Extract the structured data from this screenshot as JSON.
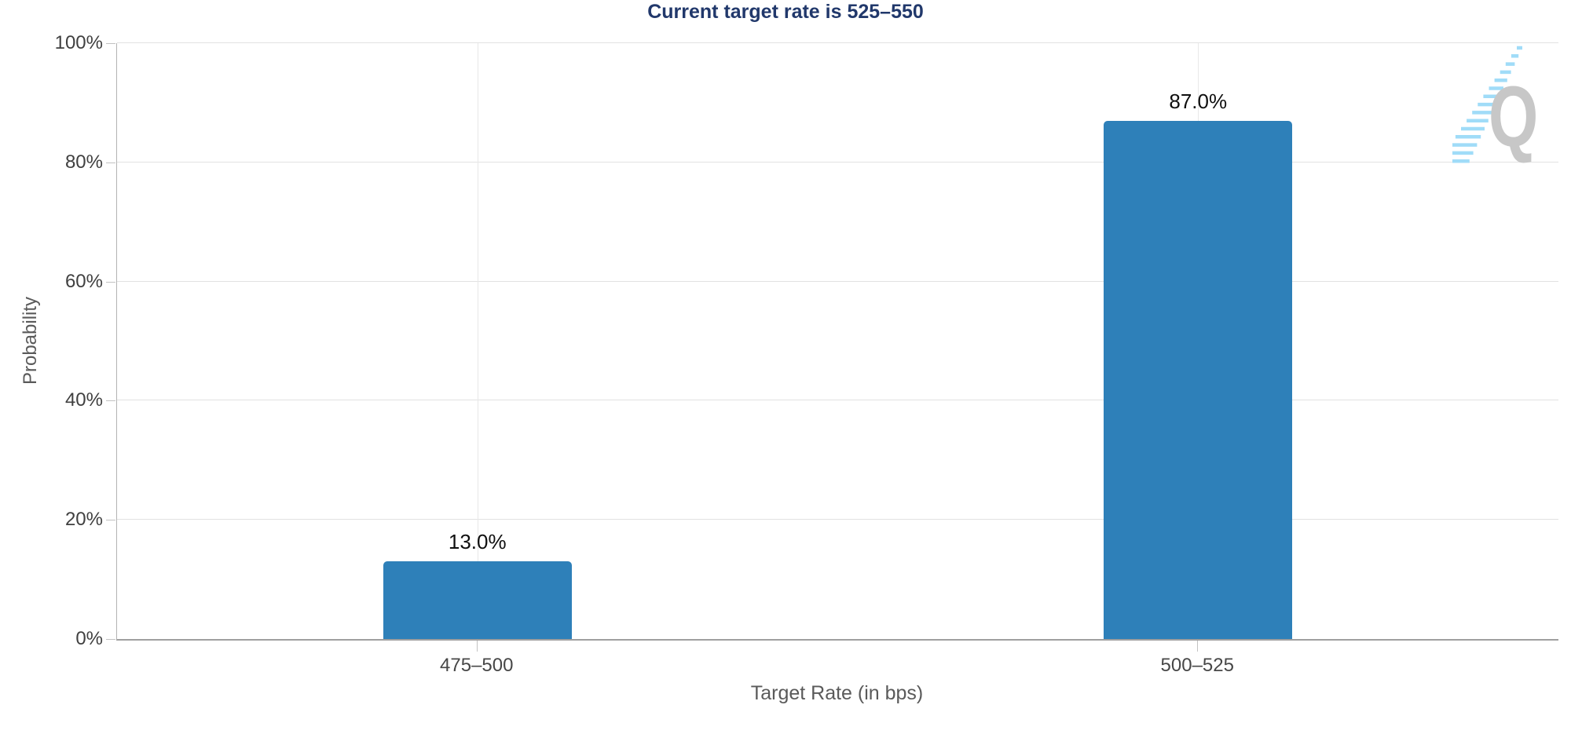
{
  "chart": {
    "title": "Current target rate is 525–550",
    "y_axis_title": "Probability",
    "x_axis_title": "Target Rate (in bps)",
    "watermark_letter": "Q"
  },
  "chart_data": {
    "type": "bar",
    "title": "Current target rate is 525–550",
    "xlabel": "Target Rate (in bps)",
    "ylabel": "Probability",
    "categories": [
      "475–500",
      "500–525"
    ],
    "values": [
      13.0,
      87.0
    ],
    "value_labels": [
      "13.0%",
      "87.0%"
    ],
    "ylim": [
      0,
      100
    ],
    "yticks": [
      0,
      20,
      40,
      60,
      80,
      100
    ],
    "ytick_labels": [
      "0%",
      "20%",
      "40%",
      "60%",
      "80%",
      "100%"
    ],
    "grid": true,
    "legend_position": "none",
    "bar_color": "#2e80b9"
  },
  "colors": {
    "bar": "#2e80b9",
    "title": "#21386b",
    "grid_line": "#e2e2e2",
    "axis_line": "#a6a6a6",
    "tick_mark": "#c2c2c2",
    "tick_label": "#404040",
    "axis_title": "#5a5a5a",
    "value_label": "#0f0f0f",
    "logo_q": "#c7c7c7",
    "logo_streak": "#a0dcf8",
    "background": "#ffffff"
  }
}
